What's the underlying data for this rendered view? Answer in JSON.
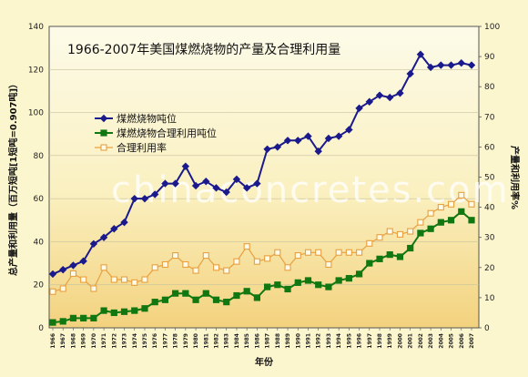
{
  "watermark": "chinaconcretes.com",
  "chart_data": {
    "type": "line",
    "title": "1966-2007年美国煤燃烧物的产量及合理利用量",
    "xlabel": "年份",
    "ylabel_left": "总产量和利用量（百万短吨[1短吨=0.907吨]）",
    "ylabel_right": "产量和利用率%",
    "ylim_left": [
      0,
      140
    ],
    "ylim_right": [
      0,
      100
    ],
    "yticks_left": [
      0,
      20,
      40,
      60,
      80,
      100,
      120,
      140
    ],
    "yticks_right": [
      0,
      10,
      20,
      30,
      40,
      50,
      60,
      70,
      80,
      90,
      100
    ],
    "grid": true,
    "legend_position": "upper-left",
    "x": [
      "1966",
      "1967",
      "1968",
      "1969",
      "1970",
      "1971",
      "1972",
      "1973",
      "1974",
      "1975",
      "1976",
      "1977",
      "1978",
      "1979",
      "1980",
      "1981",
      "1982",
      "1983",
      "1984",
      "1985",
      "1986",
      "1987",
      "1988",
      "1989",
      "1990",
      "1991",
      "1992",
      "1993",
      "1994",
      "1995",
      "1996",
      "1997",
      "1998",
      "1999",
      "2000",
      "2001",
      "2002",
      "2003",
      "2004",
      "2005",
      "2006",
      "2007"
    ],
    "series": [
      {
        "name": "煤燃烧物吨位",
        "axis": "left",
        "color": "#1a1a8c",
        "marker": "diamond",
        "values": [
          25,
          27,
          29,
          31,
          39,
          42,
          46,
          49,
          60,
          60,
          62,
          67,
          67,
          75,
          66,
          68,
          65,
          63,
          69,
          65,
          67,
          83,
          84,
          87,
          87,
          89,
          82,
          88,
          89,
          92,
          102,
          105,
          108,
          107,
          109,
          118,
          127,
          121,
          122,
          122,
          123,
          122
        ]
      },
      {
        "name": "煤燃烧物合理利用吨位",
        "axis": "left",
        "color": "#117711",
        "marker": "square",
        "values": [
          2.5,
          3,
          4.5,
          4.5,
          4.5,
          8,
          7,
          7.5,
          8,
          9,
          12,
          13,
          16,
          16,
          13,
          16,
          13,
          12,
          15,
          17,
          14,
          19,
          20,
          18,
          21,
          22,
          20,
          19,
          22,
          23,
          25,
          30,
          32,
          34,
          33,
          37,
          44,
          46,
          49,
          50,
          54,
          50
        ]
      },
      {
        "name": "合理利用率",
        "axis": "right",
        "color": "#e8a040",
        "marker": "open-square",
        "values": [
          12,
          13,
          18,
          16,
          13,
          20,
          16,
          16,
          15,
          16,
          20,
          21,
          24,
          21,
          19,
          24,
          20,
          19,
          22,
          27,
          22,
          23,
          25,
          20,
          24,
          25,
          25,
          21,
          25,
          25,
          25,
          28,
          30,
          32,
          31,
          32,
          35,
          38,
          40,
          41,
          44,
          41
        ]
      }
    ]
  }
}
